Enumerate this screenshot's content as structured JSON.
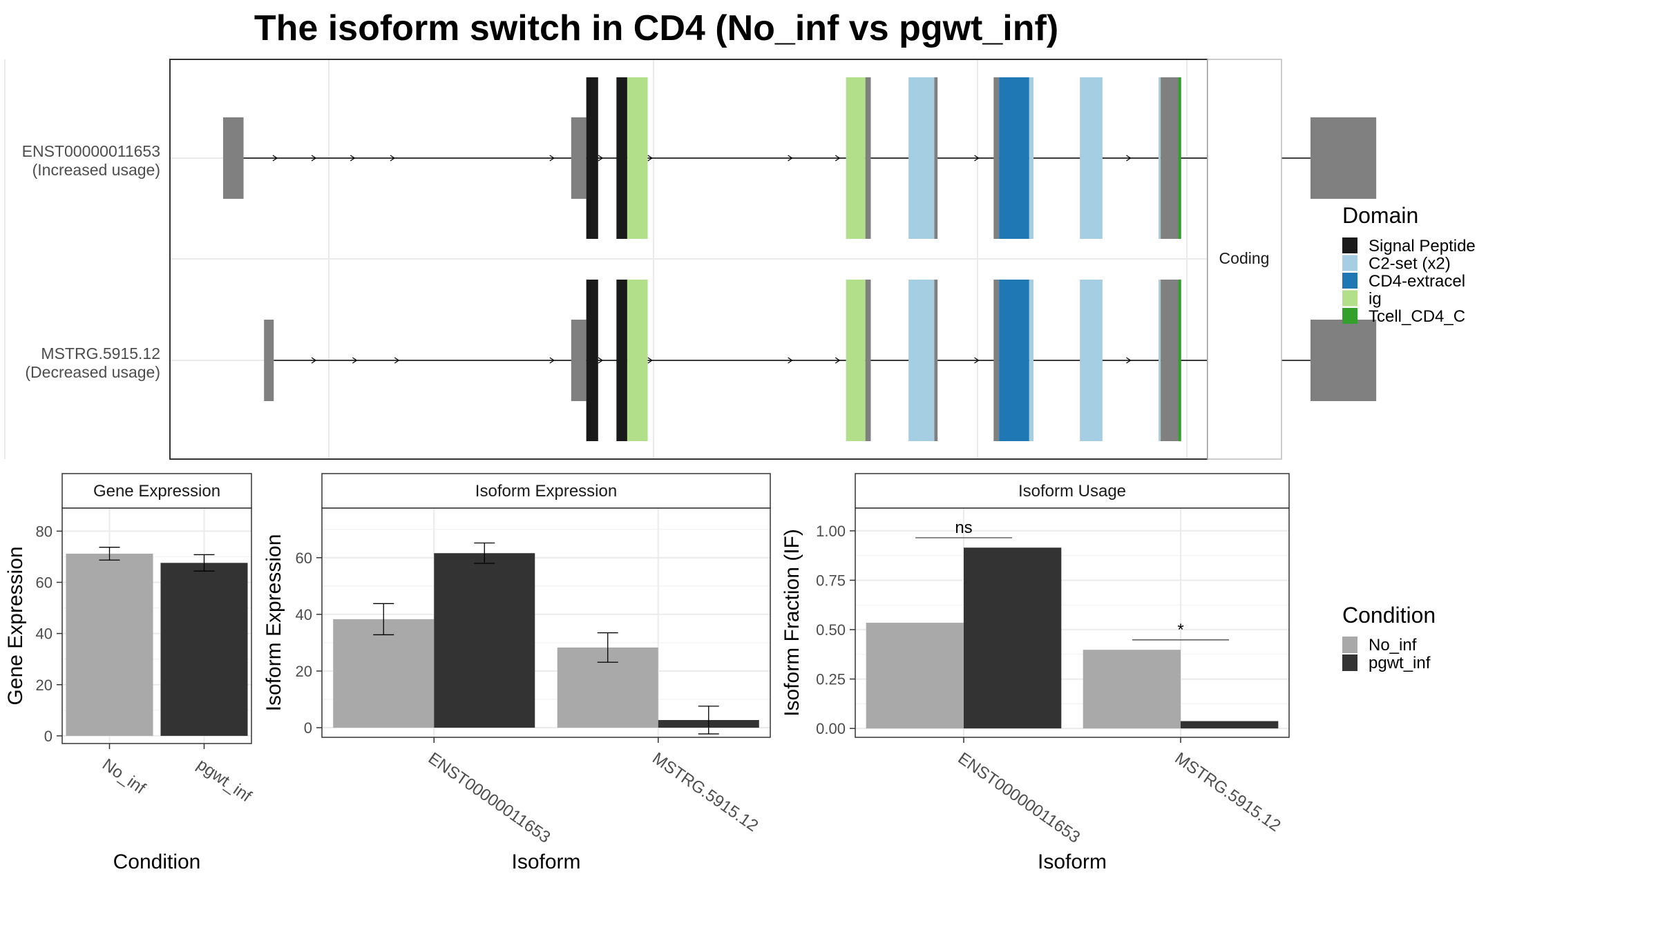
{
  "title": "The isoform switch in CD4 (No_inf vs pgwt_inf)",
  "colors": {
    "no_inf": "#a9a9a9",
    "pgwt_inf": "#333333",
    "utr": "#808080",
    "Signal Peptide": "#1a1a1a",
    "C2-set (x2)": "#a6cee3",
    "CD4-extracel": "#1f78b4",
    "ig": "#b2df8a",
    "Tcell_CD4_C": "#33a02c"
  },
  "chart_data": [
    {
      "type": "transcript-structure",
      "name": "isoform-structure",
      "facet_label": "Coding",
      "xlim": [
        0,
        1000
      ],
      "transcripts": [
        {
          "id": "ENST00000011653",
          "label_line1": "ENST00000011653",
          "label_line2": "(Increased usage)",
          "utr": [
            [
              7,
              26
            ],
            [
              330,
              344
            ],
            [
              1016,
              1077
            ]
          ],
          "segments": [
            {
              "start": 344,
              "end": 355,
              "domain": "Signal Peptide"
            },
            {
              "start": 372,
              "end": 382,
              "domain": "Signal Peptide"
            },
            {
              "start": 382,
              "end": 401,
              "domain": "ig"
            },
            {
              "start": 585,
              "end": 603,
              "domain": "ig"
            },
            {
              "start": 603,
              "end": 608,
              "domain": "utr"
            },
            {
              "start": 643,
              "end": 667,
              "domain": "C2-set (x2)"
            },
            {
              "start": 667,
              "end": 670,
              "domain": "utr"
            },
            {
              "start": 722,
              "end": 727,
              "domain": "utr"
            },
            {
              "start": 727,
              "end": 755,
              "domain": "CD4-extracel"
            },
            {
              "start": 755,
              "end": 759,
              "domain": "C2-set (x2)"
            },
            {
              "start": 802,
              "end": 823,
              "domain": "C2-set (x2)"
            },
            {
              "start": 875,
              "end": 877,
              "domain": "C2-set (x2)"
            },
            {
              "start": 877,
              "end": 893,
              "domain": "utr"
            },
            {
              "start": 893,
              "end": 896,
              "domain": "Tcell_CD4_C"
            },
            {
              "start": 923,
              "end": 936,
              "domain": "Tcell_CD4_C"
            },
            {
              "start": 966,
              "end": 972,
              "domain": "Tcell_CD4_C"
            },
            {
              "start": 972,
              "end": 980,
              "domain": "utr"
            }
          ],
          "arrows": [
            57,
            93,
            129,
            166,
            314,
            359,
            405,
            535,
            579,
            708,
            745,
            849,
            891
          ]
        },
        {
          "id": "MSTRG.5915.12",
          "label_line1": "MSTRG.5915.12",
          "label_line2": "(Decreased usage)",
          "utr": [
            [
              45,
              54
            ],
            [
              330,
              344
            ],
            [
              1016,
              1077
            ]
          ],
          "segments": [
            {
              "start": 344,
              "end": 355,
              "domain": "Signal Peptide"
            },
            {
              "start": 372,
              "end": 382,
              "domain": "Signal Peptide"
            },
            {
              "start": 382,
              "end": 401,
              "domain": "ig"
            },
            {
              "start": 585,
              "end": 603,
              "domain": "ig"
            },
            {
              "start": 603,
              "end": 608,
              "domain": "utr"
            },
            {
              "start": 643,
              "end": 667,
              "domain": "C2-set (x2)"
            },
            {
              "start": 667,
              "end": 670,
              "domain": "utr"
            },
            {
              "start": 722,
              "end": 727,
              "domain": "utr"
            },
            {
              "start": 727,
              "end": 755,
              "domain": "CD4-extracel"
            },
            {
              "start": 755,
              "end": 759,
              "domain": "C2-set (x2)"
            },
            {
              "start": 802,
              "end": 823,
              "domain": "C2-set (x2)"
            },
            {
              "start": 875,
              "end": 877,
              "domain": "C2-set (x2)"
            },
            {
              "start": 877,
              "end": 893,
              "domain": "utr"
            },
            {
              "start": 893,
              "end": 896,
              "domain": "Tcell_CD4_C"
            },
            {
              "start": 923,
              "end": 936,
              "domain": "Tcell_CD4_C"
            },
            {
              "start": 966,
              "end": 972,
              "domain": "Tcell_CD4_C"
            },
            {
              "start": 972,
              "end": 980,
              "domain": "utr"
            }
          ],
          "arrows": [
            93,
            131,
            170,
            314,
            359,
            405,
            535,
            579,
            708,
            745,
            849,
            891
          ]
        }
      ]
    },
    {
      "type": "bar",
      "name": "gene-expression",
      "panel_title": "Gene Expression",
      "xlabel": "Condition",
      "ylabel": "Gene Expression",
      "ylim": [
        -3,
        89
      ],
      "yticks": [
        0,
        20,
        40,
        60,
        80
      ],
      "categories": [
        "No_inf",
        "pgwt_inf"
      ],
      "series": [
        {
          "values": [
            71.2,
            67.6
          ],
          "errors": [
            2.5,
            3.2
          ]
        }
      ]
    },
    {
      "type": "bar",
      "name": "isoform-expression",
      "panel_title": "Isoform Expression",
      "xlabel": "Isoform",
      "ylabel": "Isoform Expression",
      "ylim": [
        -3.4,
        77.5
      ],
      "yticks": [
        0,
        20,
        40,
        60
      ],
      "categories": [
        "ENST00000011653",
        "MSTRG.5915.12"
      ],
      "series": [
        {
          "name": "No_inf",
          "values": [
            38.3,
            28.3
          ],
          "errors": [
            5.5,
            5.2
          ]
        },
        {
          "name": "pgwt_inf",
          "values": [
            61.6,
            2.7
          ],
          "errors": [
            3.6,
            4.9
          ]
        }
      ]
    },
    {
      "type": "bar",
      "name": "isoform-usage",
      "panel_title": "Isoform Usage",
      "xlabel": "Isoform",
      "ylabel": "Isoform Fraction (IF)",
      "ylim": [
        -0.045,
        1.115
      ],
      "yticks": [
        "0.00",
        "0.25",
        "0.50",
        "0.75",
        "1.00"
      ],
      "categories": [
        "ENST00000011653",
        "MSTRG.5915.12"
      ],
      "series": [
        {
          "name": "No_inf",
          "values": [
            0.535,
            0.398
          ]
        },
        {
          "name": "pgwt_inf",
          "values": [
            0.915,
            0.037
          ]
        }
      ],
      "significance": [
        {
          "label": "ns",
          "y": 0.965
        },
        {
          "label": "*",
          "y": 0.448
        }
      ]
    }
  ],
  "legend_domain": {
    "title": "Domain",
    "items": [
      "Signal Peptide",
      "C2-set (x2)",
      "CD4-extracel",
      "ig",
      "Tcell_CD4_C"
    ]
  },
  "legend_condition": {
    "title": "Condition",
    "items": [
      "No_inf",
      "pgwt_inf"
    ]
  }
}
